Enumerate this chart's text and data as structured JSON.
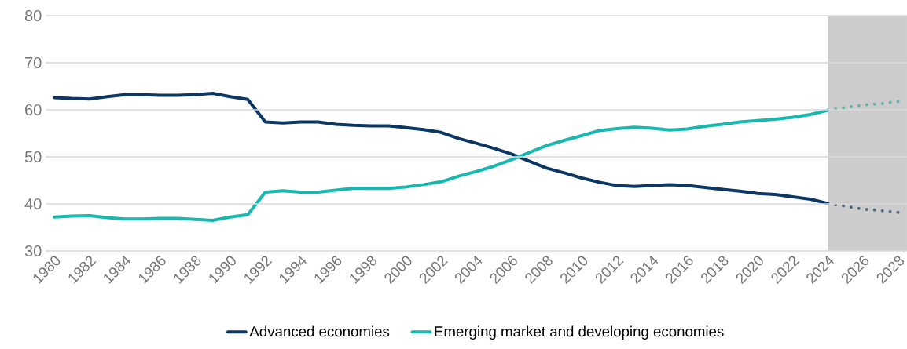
{
  "chart_data": {
    "type": "line",
    "xlim": [
      1979.5,
      2028.5
    ],
    "ylim": [
      30,
      80
    ],
    "xticks": [
      1980,
      1982,
      1984,
      1986,
      1988,
      1990,
      1992,
      1994,
      1996,
      1998,
      2000,
      2002,
      2004,
      2006,
      2008,
      2010,
      2012,
      2014,
      2016,
      2018,
      2020,
      2022,
      2024,
      2026,
      2028
    ],
    "yticks": [
      30,
      40,
      50,
      60,
      70,
      80
    ],
    "grid": "y",
    "legend": "bottom",
    "bands": [
      {
        "axis": "x",
        "from": 2024,
        "to": 2028.5,
        "color": "#cccccc"
      }
    ],
    "series": [
      {
        "name": "Advanced economies",
        "color": "#0b3764",
        "x": [
          1980,
          1981,
          1982,
          1983,
          1984,
          1985,
          1986,
          1987,
          1988,
          1989,
          1990,
          1991,
          1992,
          1993,
          1994,
          1995,
          1996,
          1997,
          1998,
          1999,
          2000,
          2001,
          2002,
          2003,
          2004,
          2005,
          2006,
          2007,
          2008,
          2009,
          2010,
          2011,
          2012,
          2013,
          2014,
          2015,
          2016,
          2017,
          2018,
          2019,
          2020,
          2021,
          2022,
          2023,
          2024
        ],
        "values": [
          62.6,
          62.4,
          62.3,
          62.8,
          63.2,
          63.2,
          63.1,
          63.1,
          63.2,
          63.5,
          62.8,
          62.2,
          57.4,
          57.2,
          57.4,
          57.4,
          56.9,
          56.7,
          56.6,
          56.6,
          56.2,
          55.8,
          55.2,
          53.9,
          52.9,
          51.8,
          50.6,
          49.1,
          47.6,
          46.6,
          45.5,
          44.6,
          43.9,
          43.7,
          43.9,
          44.1,
          43.9,
          43.5,
          43.1,
          42.7,
          42.2,
          42.0,
          41.5,
          41.0,
          40.1
        ]
      },
      {
        "name": "Emerging market and developing economies",
        "color": "#17b8b0",
        "x": [
          1980,
          1981,
          1982,
          1983,
          1984,
          1985,
          1986,
          1987,
          1988,
          1989,
          1990,
          1991,
          1992,
          1993,
          1994,
          1995,
          1996,
          1997,
          1998,
          1999,
          2000,
          2001,
          2002,
          2003,
          2004,
          2005,
          2006,
          2007,
          2008,
          2009,
          2010,
          2011,
          2012,
          2013,
          2014,
          2015,
          2016,
          2017,
          2018,
          2019,
          2020,
          2021,
          2022,
          2023,
          2024
        ],
        "values": [
          37.2,
          37.4,
          37.5,
          37.1,
          36.8,
          36.8,
          36.9,
          36.9,
          36.7,
          36.5,
          37.2,
          37.7,
          42.5,
          42.8,
          42.5,
          42.5,
          42.9,
          43.3,
          43.3,
          43.3,
          43.6,
          44.1,
          44.7,
          45.9,
          46.9,
          48.0,
          49.4,
          50.9,
          52.4,
          53.5,
          54.5,
          55.6,
          56.0,
          56.3,
          56.1,
          55.7,
          55.9,
          56.5,
          56.9,
          57.4,
          57.7,
          58.0,
          58.4,
          59.0,
          59.9
        ]
      },
      {
        "color": "#4f6a85",
        "line_style": "dotted",
        "x": [
          2024,
          2025,
          2026,
          2027,
          2028
        ],
        "values": [
          40.1,
          39.5,
          38.9,
          38.6,
          38.2
        ]
      },
      {
        "color": "#5fb3ad",
        "line_style": "dotted",
        "x": [
          2024,
          2025,
          2026,
          2027,
          2028
        ],
        "values": [
          59.9,
          60.5,
          61.0,
          61.3,
          61.8
        ]
      }
    ]
  }
}
